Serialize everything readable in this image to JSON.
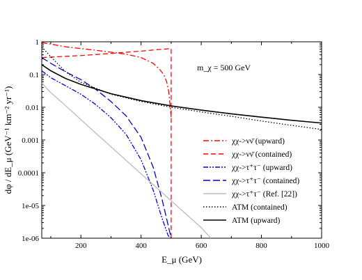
{
  "chart_data": {
    "type": "line",
    "title": "",
    "xlabel": "E_μ (GeV)",
    "ylabel": "dφ / dE_μ (GeV⁻¹ km⁻² yr⁻¹)",
    "xlim": [
      70,
      1000
    ],
    "ylim": [
      1e-06,
      1
    ],
    "yscale": "log",
    "grid": false,
    "legend_position": "bottom-right",
    "annotation": "m_χ = 500 GeV",
    "x_ticks": [
      "200",
      "400",
      "600",
      "800",
      "1000"
    ],
    "y_ticks": [
      "1e-06",
      "1e-05",
      "0.0001",
      "0.001",
      "0.01",
      "0.1",
      "1"
    ],
    "series": [
      {
        "name": "χχ->νν̄ (upward)",
        "color": "#ff0000",
        "dash": "dashdot",
        "x": [
          70,
          150,
          250,
          350,
          400,
          440,
          460,
          475,
          485,
          492,
          497,
          500
        ],
        "y": [
          0.95,
          0.7,
          0.55,
          0.42,
          0.33,
          0.22,
          0.15,
          0.1,
          0.06,
          0.03,
          0.01,
          0.005
        ]
      },
      {
        "name": "χχ->νν̄ (contained)",
        "color": "#ff0000",
        "dash": "dashed",
        "x": [
          70,
          200,
          300,
          400,
          450,
          500,
          500,
          500
        ],
        "y": [
          0.33,
          0.38,
          0.44,
          0.52,
          0.57,
          0.62,
          0.01,
          1e-06
        ]
      },
      {
        "name": "χχ->τ⁺τ⁻ (upward)",
        "color": "#0000cc",
        "dash": "dashdotdot",
        "x": [
          70,
          100,
          150,
          200,
          250,
          300,
          350,
          400,
          440,
          470,
          490,
          500
        ],
        "y": [
          0.13,
          0.08,
          0.045,
          0.025,
          0.012,
          0.0048,
          0.0015,
          0.00025,
          3e-05,
          4e-06,
          1.2e-06,
          1e-06
        ]
      },
      {
        "name": "χχ->τ⁺τ⁻ (contained)",
        "color": "#0000cc",
        "dash": "longdash",
        "x": [
          70,
          100,
          150,
          200,
          250,
          300,
          350,
          400,
          440,
          470,
          490,
          500
        ],
        "y": [
          0.33,
          0.22,
          0.12,
          0.07,
          0.035,
          0.015,
          0.0055,
          0.0012,
          0.00015,
          1.5e-05,
          2.5e-06,
          1e-06
        ]
      },
      {
        "name": "χχ->τ⁺τ⁻ (Ref. [22])",
        "color": "#bbbbbb",
        "dash": "solid",
        "x": [
          70,
          100,
          150,
          200,
          250,
          300,
          350,
          400,
          450,
          500,
          550,
          600,
          632
        ],
        "y": [
          0.055,
          0.028,
          0.011,
          0.0042,
          0.0016,
          0.00062,
          0.00024,
          9.3e-05,
          3.6e-05,
          1.4e-05,
          5.4e-06,
          2.1e-06,
          1e-06
        ]
      },
      {
        "name": "ATM (contained)",
        "color": "#000000",
        "dash": "dotted",
        "x": [
          70,
          100,
          150,
          200,
          300,
          400,
          500,
          600,
          700,
          800,
          900,
          1000
        ],
        "y": [
          0.7,
          0.35,
          0.12,
          0.058,
          0.025,
          0.015,
          0.01,
          0.0072,
          0.0053,
          0.0038,
          0.0028,
          0.0021
        ]
      },
      {
        "name": "ATM (upward)",
        "color": "#000000",
        "dash": "solid",
        "x": [
          70,
          100,
          150,
          200,
          300,
          400,
          500,
          600,
          700,
          800,
          900,
          1000
        ],
        "y": [
          0.2,
          0.13,
          0.075,
          0.05,
          0.026,
          0.016,
          0.011,
          0.0082,
          0.0063,
          0.005,
          0.004,
          0.0033
        ]
      }
    ]
  }
}
